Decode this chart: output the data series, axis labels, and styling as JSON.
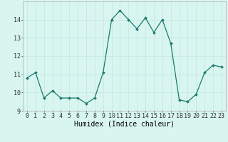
{
  "x": [
    0,
    1,
    2,
    3,
    4,
    5,
    6,
    7,
    8,
    9,
    10,
    11,
    12,
    13,
    14,
    15,
    16,
    17,
    18,
    19,
    20,
    21,
    22,
    23
  ],
  "y": [
    10.8,
    11.1,
    9.7,
    10.1,
    9.7,
    9.7,
    9.7,
    9.4,
    9.7,
    11.1,
    14.0,
    14.5,
    14.0,
    13.5,
    14.1,
    13.3,
    14.0,
    12.7,
    9.6,
    9.5,
    9.9,
    11.1,
    11.5,
    11.4
  ],
  "xlabel": "Humidex (Indice chaleur)",
  "ylim": [
    9.0,
    15.0
  ],
  "xlim": [
    -0.5,
    23.5
  ],
  "yticks": [
    9,
    10,
    11,
    12,
    13,
    14
  ],
  "xticks": [
    0,
    1,
    2,
    3,
    4,
    5,
    6,
    7,
    8,
    9,
    10,
    11,
    12,
    13,
    14,
    15,
    16,
    17,
    18,
    19,
    20,
    21,
    22,
    23
  ],
  "line_color": "#1a7a6e",
  "marker": "D",
  "marker_size": 2.0,
  "bg_color": "#d8f5f0",
  "grid_color": "#c8e8e4",
  "xlabel_fontsize": 7,
  "tick_fontsize": 6,
  "ylabel_fontsize": 6
}
